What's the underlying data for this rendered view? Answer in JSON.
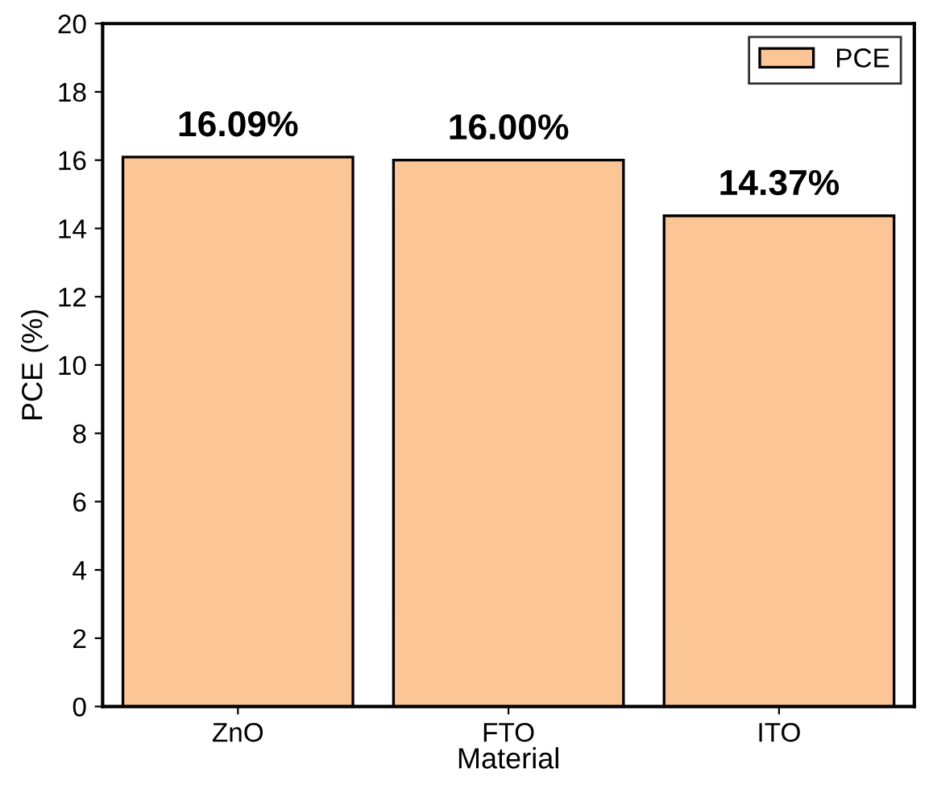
{
  "chart_data": {
    "type": "bar",
    "xlabel": "Material",
    "ylabel": "PCE (%)",
    "categories": [
      "ZnO",
      "FTO",
      "ITO"
    ],
    "series": [
      {
        "name": "PCE",
        "color": "#fbc596",
        "values": [
          16.09,
          16.0,
          14.37
        ],
        "value_labels": [
          "16.09%",
          "16.00%",
          "14.37%"
        ]
      }
    ],
    "ylim": [
      0,
      20
    ],
    "yticks": [
      0,
      2,
      4,
      6,
      8,
      10,
      12,
      14,
      16,
      18,
      20
    ],
    "legend": "top right",
    "grid": false
  }
}
